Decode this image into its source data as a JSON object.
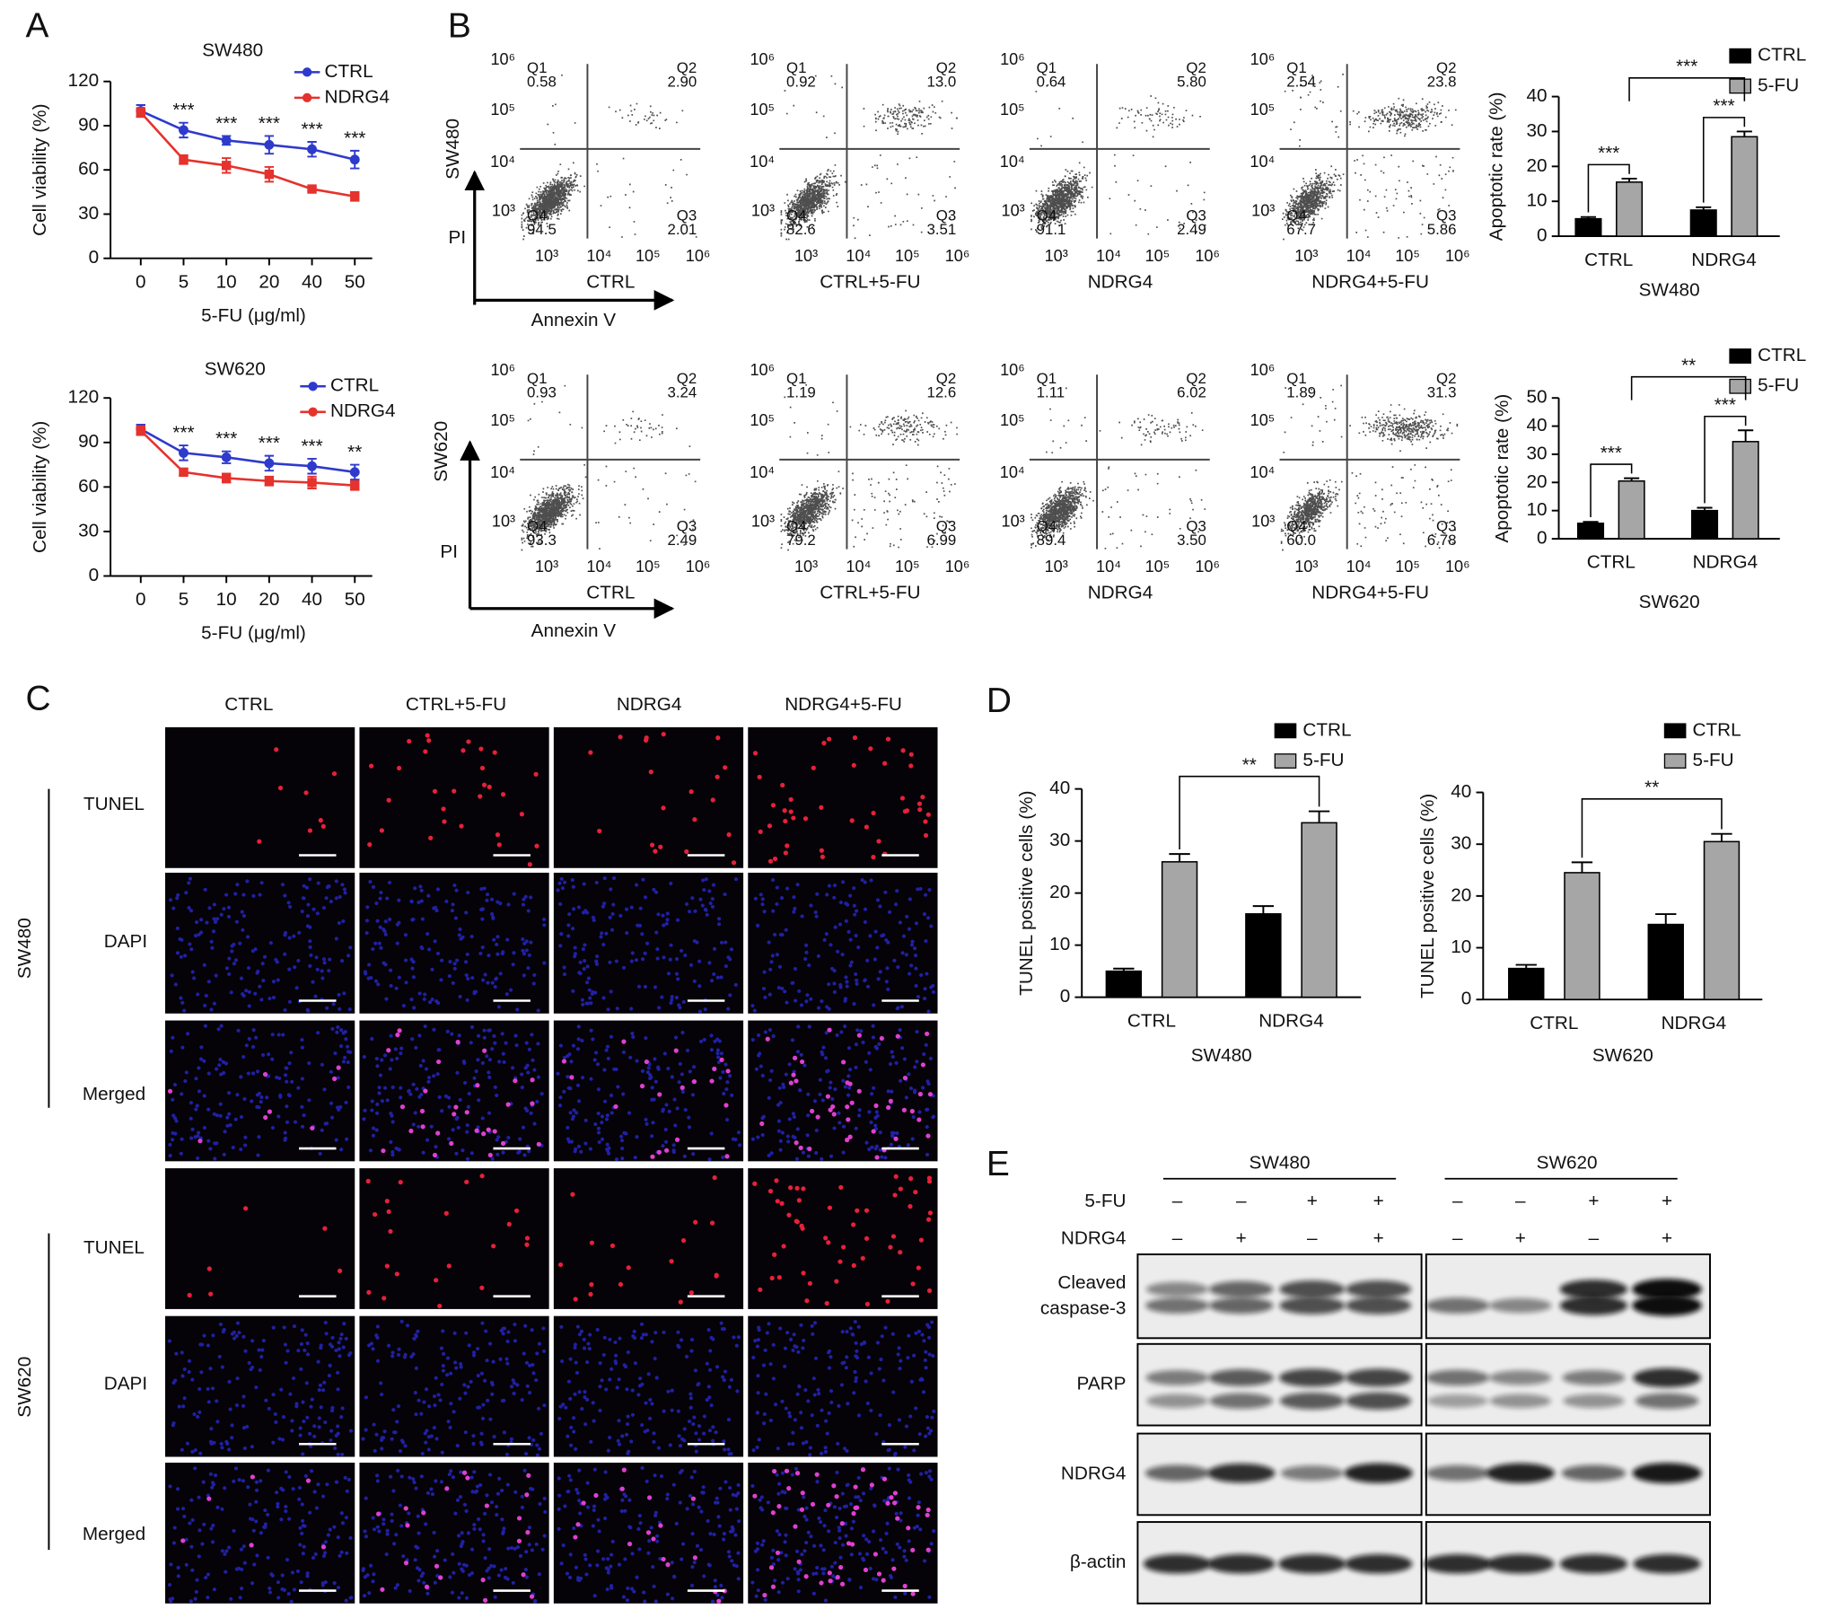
{
  "panel_labels": [
    "A",
    "B",
    "C",
    "D",
    "E"
  ],
  "chart_data": [
    {
      "type": "line",
      "title": "SW480",
      "x_label": "5-FU (μg/ml)",
      "y_label": "Cell viability (%)",
      "categories": [
        "0",
        "5",
        "10",
        "20",
        "40",
        "50"
      ],
      "ylim": [
        0,
        120
      ],
      "yticks": [
        0,
        30,
        60,
        90,
        120
      ],
      "legend": "upper right",
      "series": [
        {
          "name": "CTRL",
          "color": "#2e3acb",
          "values": [
            100,
            87,
            80,
            77,
            74,
            67
          ],
          "errors": [
            4,
            5,
            3,
            6,
            5,
            6
          ]
        },
        {
          "name": "NDRG4",
          "color": "#e5322d",
          "values": [
            99,
            67,
            63,
            57,
            47,
            42
          ],
          "errors": [
            3,
            3,
            5,
            5,
            1,
            3
          ]
        }
      ],
      "significance": [
        null,
        "***",
        "***",
        "***",
        "***",
        "***"
      ]
    },
    {
      "type": "line",
      "title": "SW620",
      "x_label": "5-FU (μg/ml)",
      "y_label": "Cell viability (%)",
      "categories": [
        "0",
        "5",
        "10",
        "20",
        "40",
        "50"
      ],
      "ylim": [
        0,
        120
      ],
      "yticks": [
        0,
        30,
        60,
        90,
        120
      ],
      "legend": "upper right",
      "series": [
        {
          "name": "CTRL",
          "color": "#2e3acb",
          "values": [
            99,
            83,
            80,
            76,
            74,
            70
          ],
          "errors": [
            3,
            5,
            4,
            5,
            5,
            5
          ]
        },
        {
          "name": "NDRG4",
          "color": "#e5322d",
          "values": [
            98,
            70,
            66,
            64,
            63,
            61
          ],
          "errors": [
            3,
            2,
            3,
            3,
            4,
            3
          ]
        }
      ],
      "significance": [
        null,
        "***",
        "***",
        "***",
        "***",
        "**"
      ]
    },
    {
      "type": "bar",
      "x_label": "SW480",
      "y_label": "Apoptotic rate (%)",
      "categories": [
        "CTRL",
        "NDRG4"
      ],
      "ylim": [
        0,
        40
      ],
      "yticks": [
        0,
        10,
        20,
        30,
        40
      ],
      "legend": "upper right",
      "series": [
        {
          "name": "CTRL",
          "color": "#000000",
          "values": [
            5,
            7.5
          ],
          "errors": [
            0.5,
            0.8
          ]
        },
        {
          "name": "5-FU",
          "color": "#a6a6a6",
          "values": [
            15.5,
            28.5
          ],
          "errors": [
            1,
            1.5
          ]
        }
      ],
      "significance": [
        "***",
        "***",
        "***"
      ]
    },
    {
      "type": "bar",
      "x_label": "SW620",
      "y_label": "Apoptotic rate (%)",
      "categories": [
        "CTRL",
        "NDRG4"
      ],
      "ylim": [
        0,
        50
      ],
      "yticks": [
        0,
        10,
        20,
        30,
        40,
        50
      ],
      "legend": "upper right",
      "series": [
        {
          "name": "CTRL",
          "color": "#000000",
          "values": [
            5.5,
            10
          ],
          "errors": [
            0.5,
            1
          ]
        },
        {
          "name": "5-FU",
          "color": "#a6a6a6",
          "values": [
            20.5,
            34.5
          ],
          "errors": [
            1,
            4
          ]
        }
      ],
      "significance": [
        "***",
        "***",
        "**"
      ]
    },
    {
      "type": "bar",
      "x_label": "SW480",
      "y_label": "TUNEL positive cells (%)",
      "categories": [
        "CTRL",
        "NDRG4"
      ],
      "ylim": [
        0,
        40
      ],
      "yticks": [
        0,
        10,
        20,
        30,
        40
      ],
      "legend": "upper right",
      "series": [
        {
          "name": "CTRL",
          "color": "#000000",
          "values": [
            5,
            16
          ],
          "errors": [
            0.5,
            1.5
          ]
        },
        {
          "name": "5-FU",
          "color": "#a6a6a6",
          "values": [
            26,
            33.5
          ],
          "errors": [
            1.5,
            2.2
          ]
        }
      ],
      "significance": [
        "**"
      ]
    },
    {
      "type": "bar",
      "x_label": "SW620",
      "y_label": "TUNEL positive cells (%)",
      "categories": [
        "CTRL",
        "NDRG4"
      ],
      "ylim": [
        0,
        40
      ],
      "yticks": [
        0,
        10,
        20,
        30,
        40
      ],
      "legend": "upper right",
      "series": [
        {
          "name": "CTRL",
          "color": "#000000",
          "values": [
            6,
            14.5
          ],
          "errors": [
            0.7,
            2
          ]
        },
        {
          "name": "5-FU",
          "color": "#a6a6a6",
          "values": [
            24.5,
            30.5
          ],
          "errors": [
            2,
            1.5
          ]
        }
      ],
      "significance": [
        "**"
      ]
    }
  ],
  "flow_cytometry": {
    "x_label": "Annexin V",
    "y_label": "PI",
    "quadrant_names": [
      "Q1",
      "Q2",
      "Q3",
      "Q4"
    ],
    "ticks": [
      "10³",
      "10⁴",
      "10⁵",
      "10⁶"
    ],
    "rows": [
      {
        "cell_line": "SW480",
        "plots": [
          {
            "label": "CTRL",
            "values": [
              "0.58",
              "2.90",
              "2.01",
              "94.5"
            ]
          },
          {
            "label": "CTRL+5-FU",
            "values": [
              "0.92",
              "13.0",
              "3.51",
              "82.6"
            ]
          },
          {
            "label": "NDRG4",
            "values": [
              "0.64",
              "5.80",
              "2.49",
              "91.1"
            ]
          },
          {
            "label": "NDRG4+5-FU",
            "values": [
              "2.54",
              "23.8",
              "5.86",
              "67.7"
            ]
          }
        ]
      },
      {
        "cell_line": "SW620",
        "plots": [
          {
            "label": "CTRL",
            "values": [
              "0.93",
              "3.24",
              "2.49",
              "93.3"
            ]
          },
          {
            "label": "CTRL+5-FU",
            "values": [
              "1.19",
              "12.6",
              "6.99",
              "79.2"
            ]
          },
          {
            "label": "NDRG4",
            "values": [
              "1.11",
              "6.02",
              "3.50",
              "89.4"
            ]
          },
          {
            "label": "NDRG4+5-FU",
            "values": [
              "1.89",
              "31.3",
              "6.78",
              "60.0"
            ]
          }
        ]
      }
    ]
  },
  "tunel": {
    "columns": [
      "CTRL",
      "CTRL+5-FU",
      "NDRG4",
      "NDRG4+5-FU"
    ],
    "rows": [
      {
        "cell_line": "SW480",
        "stains": [
          "TUNEL",
          "DAPI",
          "Merged"
        ]
      },
      {
        "cell_line": "SW620",
        "stains": [
          "TUNEL",
          "DAPI",
          "Merged"
        ]
      }
    ]
  },
  "western": {
    "groups": [
      "SW480",
      "SW620"
    ],
    "treatments": [
      {
        "label": "5-FU",
        "signs": [
          "–",
          "–",
          "+",
          "+",
          "–",
          "–",
          "+",
          "+"
        ]
      },
      {
        "label": "NDRG4",
        "signs": [
          "–",
          "+",
          "–",
          "+",
          "–",
          "+",
          "–",
          "+"
        ]
      }
    ],
    "proteins": [
      [
        "Cleaved",
        "caspase-3"
      ],
      [
        "PARP"
      ],
      [
        "NDRG4"
      ],
      [
        "β-actin"
      ]
    ]
  }
}
